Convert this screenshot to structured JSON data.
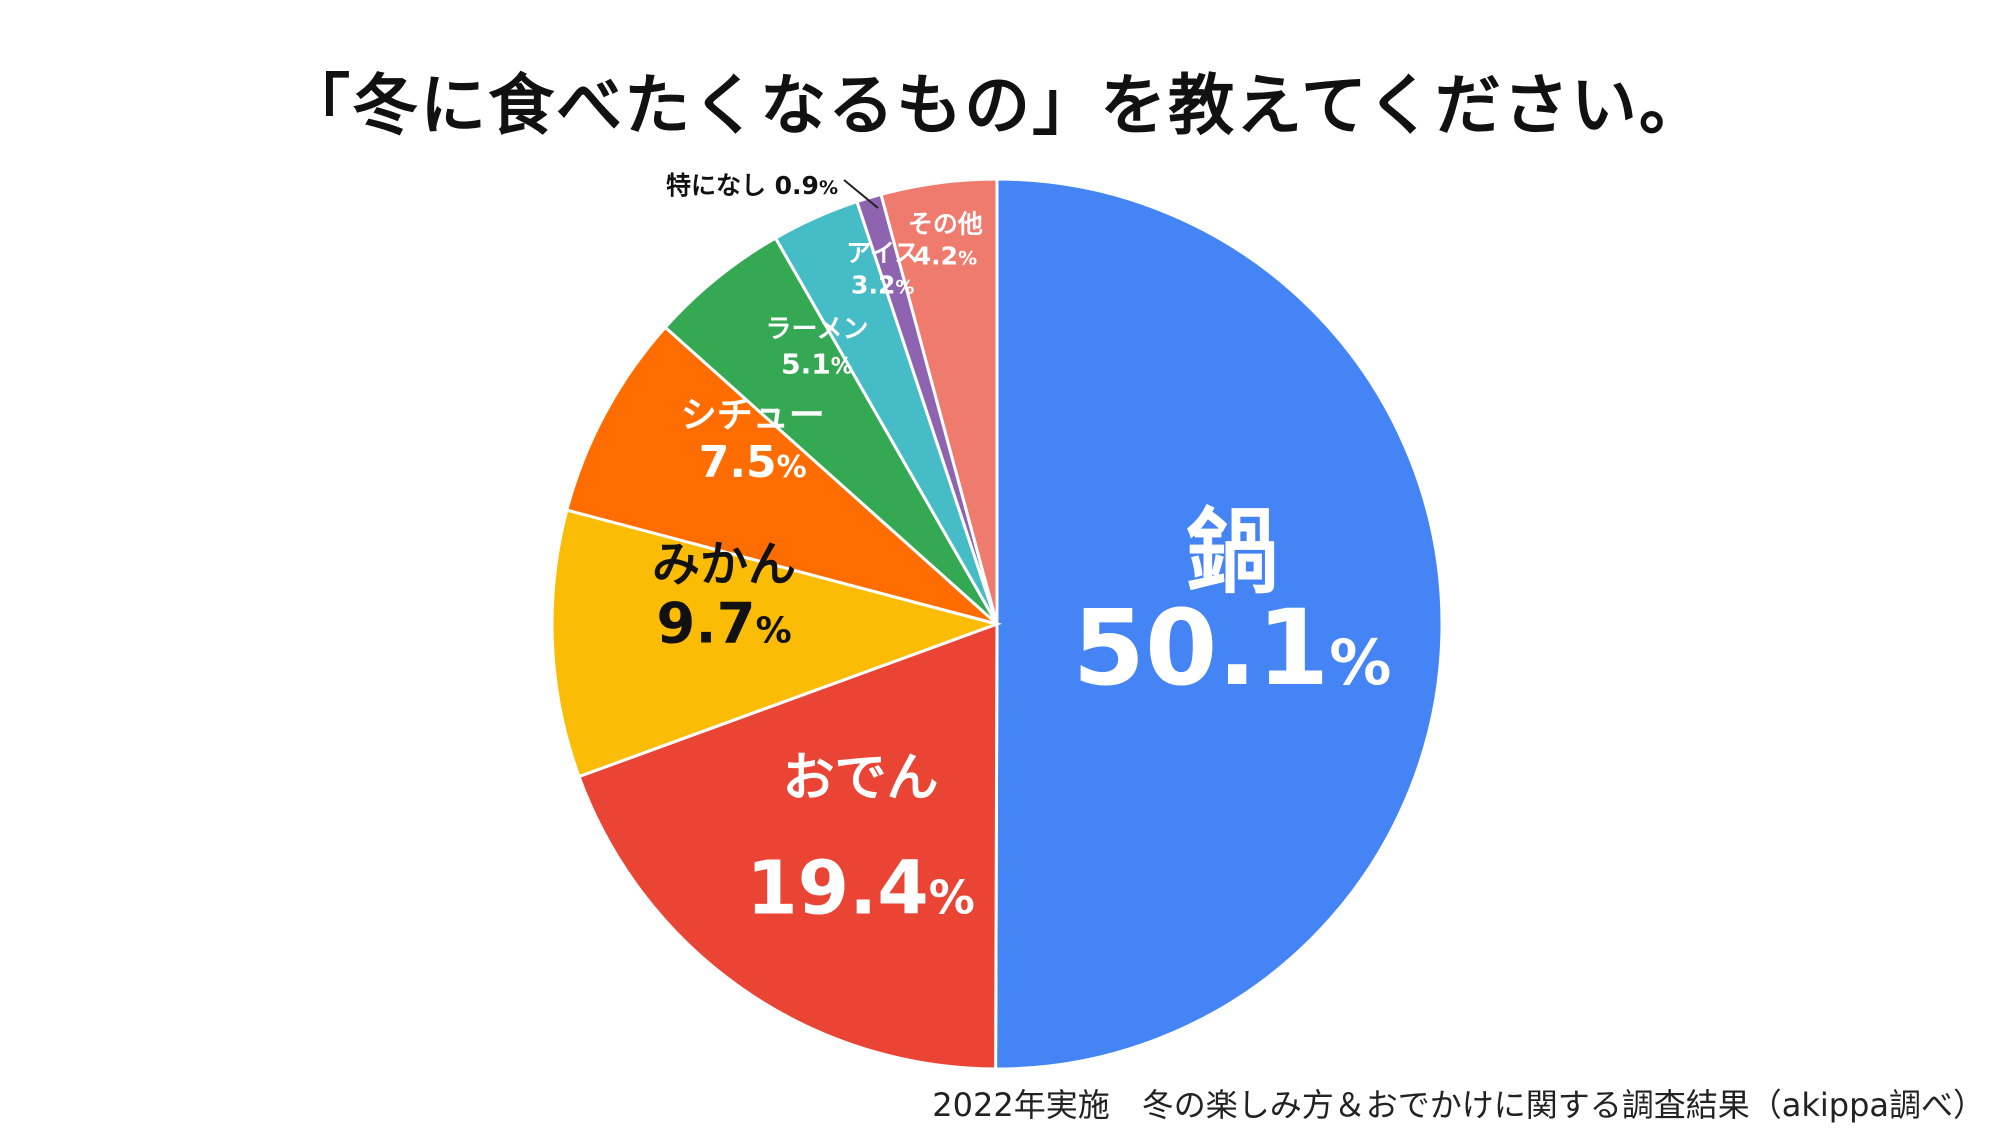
{
  "title": "「冬に食べたくなるもの」を教えてください。",
  "footnote": "2022年実施　冬の楽しみ方＆おでかけに関する調査結果（akippa調べ）",
  "chart_data": {
    "type": "pie",
    "start_angle_deg": 0,
    "direction": "clockwise",
    "slices": [
      {
        "label": "鍋",
        "value": 50.1,
        "value_text": "50.1",
        "percent_sign": "%",
        "color": "#4584F4",
        "text_color": "#FFFFFF"
      },
      {
        "label": "おでん",
        "value": 19.4,
        "value_text": "19.4",
        "percent_sign": "%",
        "color": "#EA4435",
        "text_color": "#FFFFFF"
      },
      {
        "label": "みかん",
        "value": 9.7,
        "value_text": "9.7",
        "percent_sign": "%",
        "color": "#FBBC06",
        "text_color": "#111111"
      },
      {
        "label": "シチュー",
        "value": 7.5,
        "value_text": "7.5",
        "percent_sign": "%",
        "color": "#FF6D01",
        "text_color": "#FFFFFF"
      },
      {
        "label": "ラーメン",
        "value": 5.1,
        "value_text": "5.1",
        "percent_sign": "%",
        "color": "#34A853",
        "text_color": "#FFFFFF"
      },
      {
        "label": "アイス",
        "value": 3.2,
        "value_text": "3.2",
        "percent_sign": "%",
        "color": "#46BDC6",
        "text_color": "#FFFFFF"
      },
      {
        "label": "特になし",
        "value": 0.9,
        "value_text": "0.9",
        "percent_sign": "%",
        "color": "#8E63B0",
        "text_color": "#111111",
        "label_outside": true
      },
      {
        "label": "その他",
        "value": 4.2,
        "value_text": "4.2",
        "percent_sign": "%",
        "color": "#EF7B6E",
        "text_color": "#FFFFFF"
      }
    ]
  }
}
